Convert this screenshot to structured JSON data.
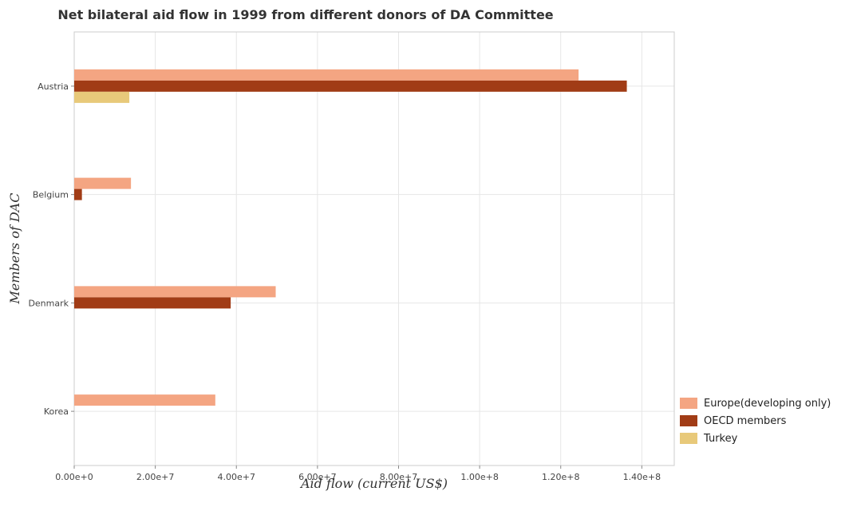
{
  "chart_data": {
    "type": "bar",
    "orientation": "horizontal",
    "title": "Net bilateral aid flow in 1999 from different donors of DA Committee",
    "xlabel": "Aid flow (current US$)",
    "ylabel": "Members of DAC",
    "categories": [
      "Austria",
      "Belgium",
      "Denmark",
      "Korea"
    ],
    "series": [
      {
        "name": "Europe(developing only)",
        "color": "#f4a582",
        "values": [
          124400000,
          14000000,
          49700000,
          34800000
        ]
      },
      {
        "name": "OECD members",
        "color": "#a13c16",
        "values": [
          136300000,
          1900000,
          38600000,
          0
        ]
      },
      {
        "name": "Turkey",
        "color": "#e8c97a",
        "values": [
          13600000,
          0,
          0,
          0
        ]
      }
    ],
    "xlim": [
      0,
      148000000
    ],
    "xticks": [
      0,
      20000000,
      40000000,
      60000000,
      80000000,
      100000000,
      120000000,
      140000000
    ],
    "xtick_labels": [
      "0.00e+0",
      "2.00e+7",
      "4.00e+7",
      "6.00e+7",
      "8.00e+7",
      "1.00e+8",
      "1.20e+8",
      "1.40e+8"
    ],
    "grid": true,
    "legend_position": "bottom-right"
  }
}
